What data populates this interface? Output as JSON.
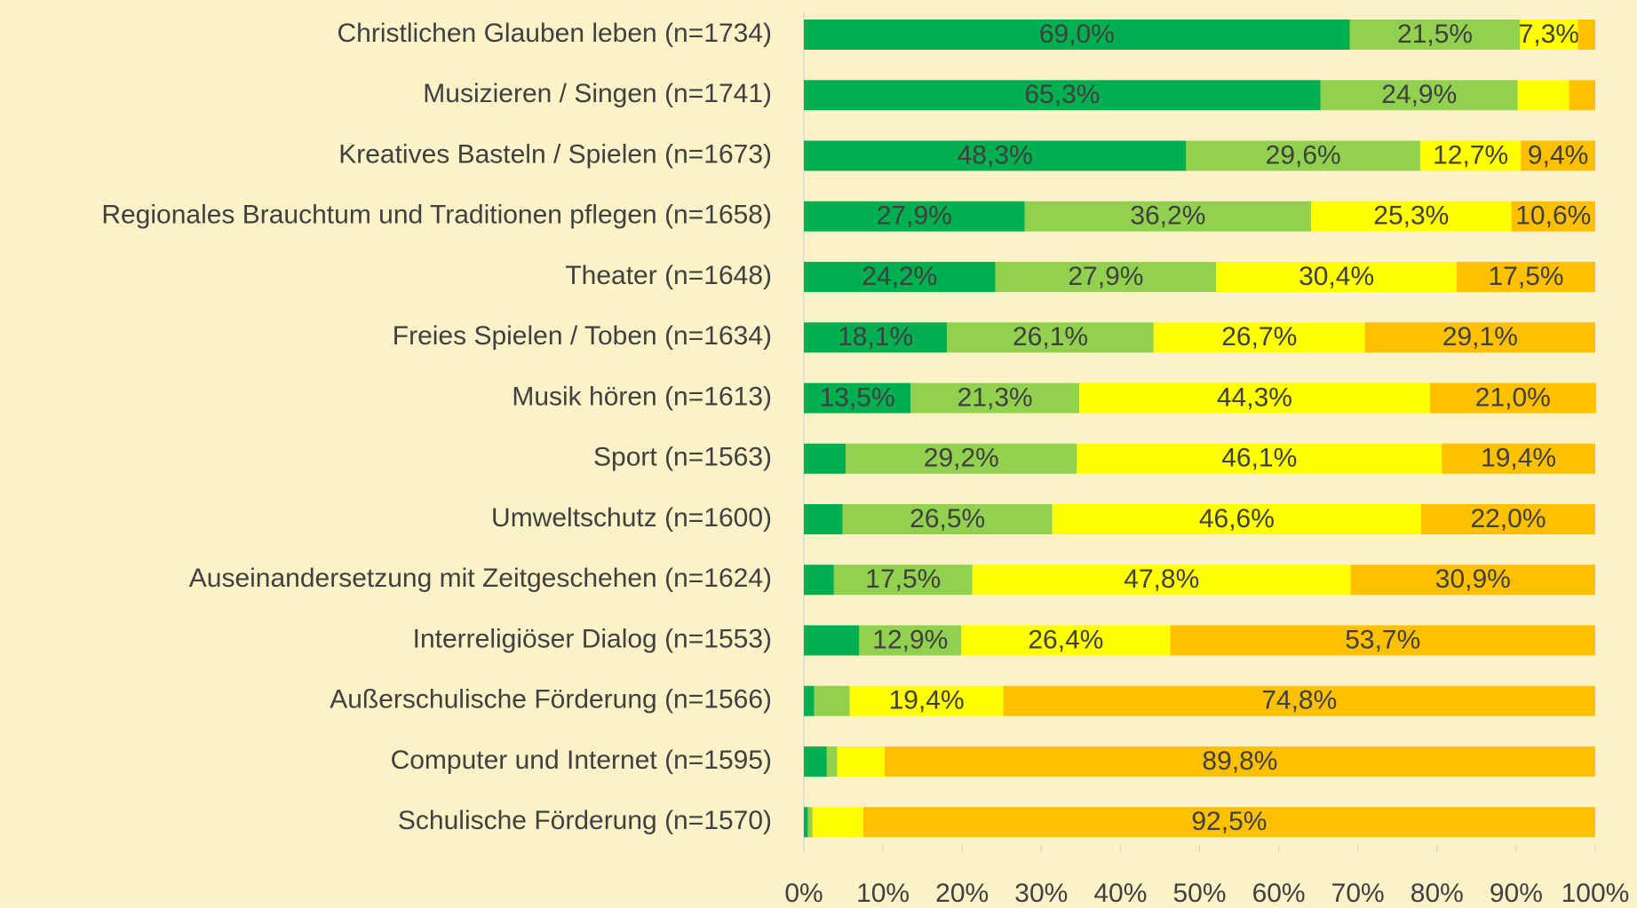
{
  "chart_data": {
    "type": "stacked-bar-horizontal",
    "categories": [
      "Christlichen Glauben leben (n=1734)",
      "Musizieren / Singen (n=1741)",
      "Kreatives Basteln / Spielen (n=1673)",
      "Regionales Brauchtum und Traditionen pflegen (n=1658)",
      "Theater (n=1648)",
      "Freies Spielen / Toben (n=1634)",
      "Musik hören (n=1613)",
      "Sport (n=1563)",
      "Umweltschutz (n=1600)",
      "Auseinandersetzung mit Zeitgeschehen (n=1624)",
      "Interreligiöser Dialog (n=1553)",
      "Außerschulische Förderung (n=1566)",
      "Computer und Internet (n=1595)",
      "Schulische Förderung (n=1570)"
    ],
    "series": [
      {
        "color": "#00b050",
        "values": [
          69.0,
          65.3,
          48.3,
          27.9,
          24.2,
          18.1,
          13.5,
          5.3,
          4.9,
          3.8,
          7.0,
          1.3,
          2.9,
          0.5
        ],
        "value_labels": [
          "69,0%",
          "65,3%",
          "48,3%",
          "27,9%",
          "24,2%",
          "18,1%",
          "13,5%",
          null,
          null,
          null,
          null,
          null,
          null,
          null
        ]
      },
      {
        "color": "#92d050",
        "values": [
          21.5,
          24.9,
          29.6,
          36.2,
          27.9,
          26.1,
          21.3,
          29.2,
          26.5,
          17.5,
          12.9,
          4.5,
          1.3,
          0.6
        ],
        "value_labels": [
          "21,5%",
          "24,9%",
          "29,6%",
          "36,2%",
          "27,9%",
          "26,1%",
          "21,3%",
          "29,2%",
          "26,5%",
          "17,5%",
          "12,9%",
          null,
          null,
          null
        ]
      },
      {
        "color": "#ffff00",
        "values": [
          7.3,
          6.5,
          12.7,
          25.3,
          30.4,
          26.7,
          44.3,
          46.1,
          46.6,
          47.8,
          26.4,
          19.4,
          6.0,
          6.4
        ],
        "value_labels": [
          "7,3%",
          null,
          "12,7%",
          "25,3%",
          "30,4%",
          "26,7%",
          "44,3%",
          "46,1%",
          "46,6%",
          "47,8%",
          "26,4%",
          "19,4%",
          null,
          null
        ]
      },
      {
        "color": "#ffc000",
        "values": [
          2.2,
          3.3,
          9.4,
          10.6,
          17.5,
          29.1,
          21.0,
          19.4,
          22.0,
          30.9,
          53.7,
          74.8,
          89.8,
          92.5
        ],
        "value_labels": [
          null,
          null,
          "9,4%",
          "10,6%",
          "17,5%",
          "29,1%",
          "21,0%",
          "19,4%",
          "22,0%",
          "30,9%",
          "53,7%",
          "74,8%",
          "89,8%",
          "92,5%"
        ]
      }
    ],
    "xlim": [
      0,
      100
    ],
    "xticks": [
      {
        "value": 0,
        "label": "0%"
      },
      {
        "value": 10,
        "label": "10%"
      },
      {
        "value": 20,
        "label": "20%"
      },
      {
        "value": 30,
        "label": "30%"
      },
      {
        "value": 40,
        "label": "40%"
      },
      {
        "value": 50,
        "label": "50%"
      },
      {
        "value": 60,
        "label": "60%"
      },
      {
        "value": 70,
        "label": "70%"
      },
      {
        "value": 80,
        "label": "80%"
      },
      {
        "value": 90,
        "label": "90%"
      },
      {
        "value": 100,
        "label": "100%"
      }
    ],
    "grid": false
  }
}
